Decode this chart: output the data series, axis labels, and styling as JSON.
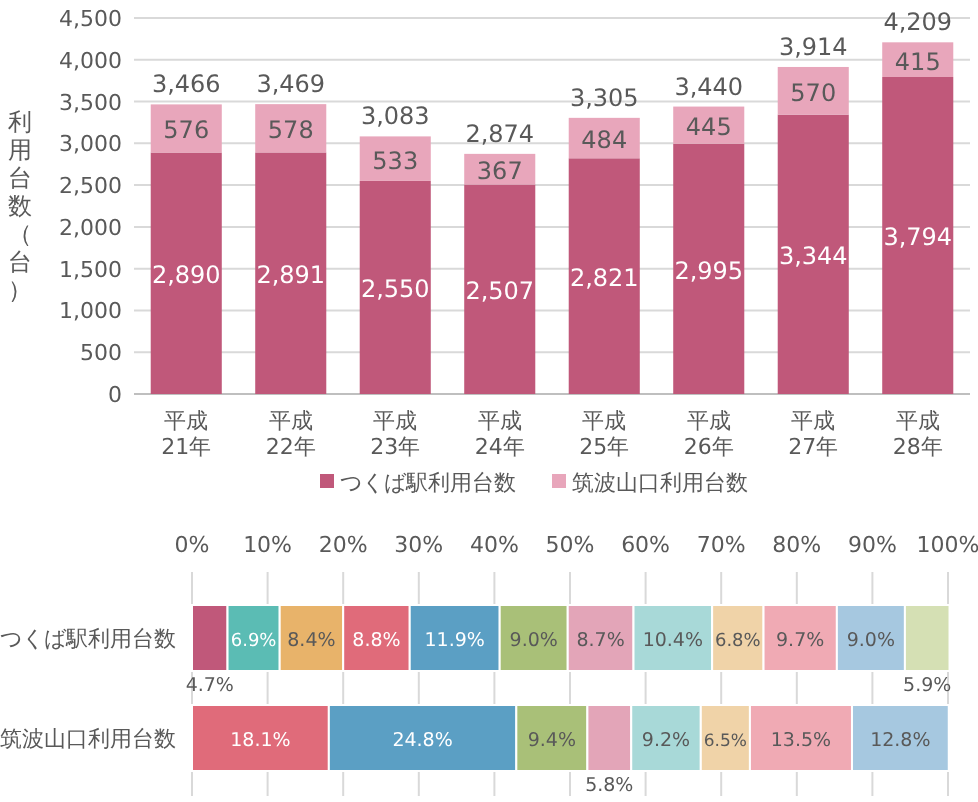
{
  "chart_data": [
    {
      "type": "bar",
      "stacked": true,
      "ylabel": "利用台数（台）",
      "categories": [
        "平成\n21年",
        "平成\n22年",
        "平成\n23年",
        "平成\n24年",
        "平成\n25年",
        "平成\n26年",
        "平成\n27年",
        "平成\n28年"
      ],
      "series": [
        {
          "name": "つくば駅利用台数",
          "color": "#c0587a",
          "values": [
            2890,
            2891,
            2550,
            2507,
            2821,
            2995,
            3344,
            3794
          ],
          "value_labels": [
            "2,890",
            "2,891",
            "2,550",
            "2,507",
            "2,821",
            "2,995",
            "3,344",
            "3,794"
          ]
        },
        {
          "name": "筑波山口利用台数",
          "color": "#e8a6bb",
          "values": [
            576,
            578,
            533,
            367,
            484,
            445,
            570,
            415
          ],
          "value_labels": [
            "576",
            "578",
            "533",
            "367",
            "484",
            "445",
            "570",
            "415"
          ]
        }
      ],
      "totals": [
        "3,466",
        "3,469",
        "3,083",
        "2,874",
        "3,305",
        "3,440",
        "3,914",
        "4,209"
      ],
      "ylim": [
        0,
        4500
      ],
      "yticks": [
        {
          "value": 0,
          "label": "0"
        },
        {
          "value": 500,
          "label": "500"
        },
        {
          "value": 1000,
          "label": "1,000"
        },
        {
          "value": 1500,
          "label": "1,500"
        },
        {
          "value": 2000,
          "label": "2,000"
        },
        {
          "value": 2500,
          "label": "2,500"
        },
        {
          "value": 3000,
          "label": "3,000"
        },
        {
          "value": 3500,
          "label": "3,500"
        },
        {
          "value": 4000,
          "label": "4,000"
        },
        {
          "value": 4500,
          "label": "4,500"
        }
      ],
      "grid": "y",
      "legend": "bottom"
    },
    {
      "type": "bar",
      "stacked": true,
      "orientation": "horizontal",
      "categories": [
        "つくば駅利用台数",
        "筑波山口利用台数"
      ],
      "series": [
        {
          "color": "#c0587a",
          "values": [
            4.7,
            null
          ],
          "value_labels": [
            "4.7%",
            null
          ]
        },
        {
          "color": "#5bbcb4",
          "values": [
            6.9,
            null
          ],
          "value_labels": [
            "6.9%",
            null
          ]
        },
        {
          "color": "#e8b36a",
          "values": [
            8.4,
            null
          ],
          "value_labels": [
            "8.4%",
            null
          ]
        },
        {
          "color": "#e06b7a",
          "values": [
            8.8,
            18.1
          ],
          "value_labels": [
            "8.8%",
            "18.1%"
          ]
        },
        {
          "color": "#5b9fc4",
          "values": [
            11.9,
            24.8
          ],
          "value_labels": [
            "11.9%",
            "24.8%"
          ]
        },
        {
          "color": "#a9c078",
          "values": [
            9.0,
            9.4
          ],
          "value_labels": [
            "9.0%",
            "9.4%"
          ]
        },
        {
          "color": "#e3a5b8",
          "values": [
            8.7,
            5.8
          ],
          "value_labels": [
            "8.7%",
            "5.8%"
          ]
        },
        {
          "color": "#a8d9d8",
          "values": [
            10.4,
            9.2
          ],
          "value_labels": [
            "10.4%",
            "9.2%"
          ]
        },
        {
          "color": "#f0d3a8",
          "values": [
            6.8,
            6.5
          ],
          "value_labels": [
            "6.8%",
            "6.5%"
          ]
        },
        {
          "color": "#f0aab4",
          "values": [
            9.7,
            13.5
          ],
          "value_labels": [
            "9.7%",
            "13.5%"
          ]
        },
        {
          "color": "#a6c8e0",
          "values": [
            9.0,
            12.8
          ],
          "value_labels": [
            "9.0%",
            "12.8%"
          ]
        },
        {
          "color": "#d5e0b4",
          "values": [
            5.9,
            null
          ],
          "value_labels": [
            "5.9%",
            null
          ]
        }
      ],
      "xlim": [
        0,
        100
      ],
      "xticks": [
        {
          "value": 0,
          "label": "0%"
        },
        {
          "value": 10,
          "label": "10%"
        },
        {
          "value": 20,
          "label": "20%"
        },
        {
          "value": 30,
          "label": "30%"
        },
        {
          "value": 40,
          "label": "40%"
        },
        {
          "value": 50,
          "label": "50%"
        },
        {
          "value": 60,
          "label": "60%"
        },
        {
          "value": 70,
          "label": "70%"
        },
        {
          "value": 80,
          "label": "80%"
        },
        {
          "value": 90,
          "label": "90%"
        },
        {
          "value": 100,
          "label": "100%"
        }
      ],
      "grid": "x"
    }
  ]
}
